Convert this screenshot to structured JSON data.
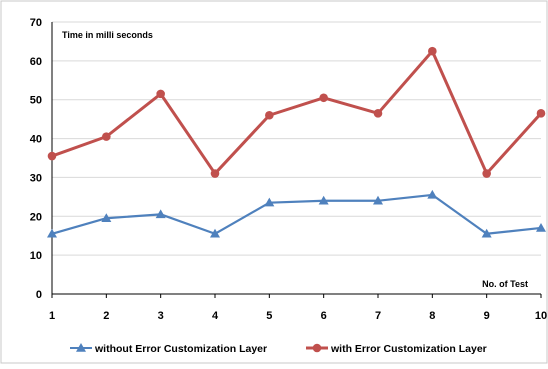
{
  "chart_data": {
    "type": "line",
    "title": "",
    "ylabel": "Time in milli seconds",
    "xlabel": "No. of Test",
    "x": [
      1,
      2,
      3,
      4,
      5,
      6,
      7,
      8,
      9,
      10
    ],
    "ylim": [
      0,
      70
    ],
    "yticks": [
      0,
      10,
      20,
      30,
      40,
      50,
      60,
      70
    ],
    "grid": true,
    "legend_position": "bottom",
    "series": [
      {
        "name": "without Error Customization Layer",
        "color": "#4f81bd",
        "marker": "triangle",
        "values": [
          15.5,
          19.5,
          20.5,
          15.5,
          23.5,
          24,
          24,
          25.5,
          15.5,
          17
        ]
      },
      {
        "name": "with Error Customization Layer",
        "color": "#c0504d",
        "marker": "circle",
        "values": [
          35.5,
          40.5,
          51.5,
          31,
          46,
          50.5,
          46.5,
          62.5,
          31,
          46.5
        ]
      }
    ]
  }
}
